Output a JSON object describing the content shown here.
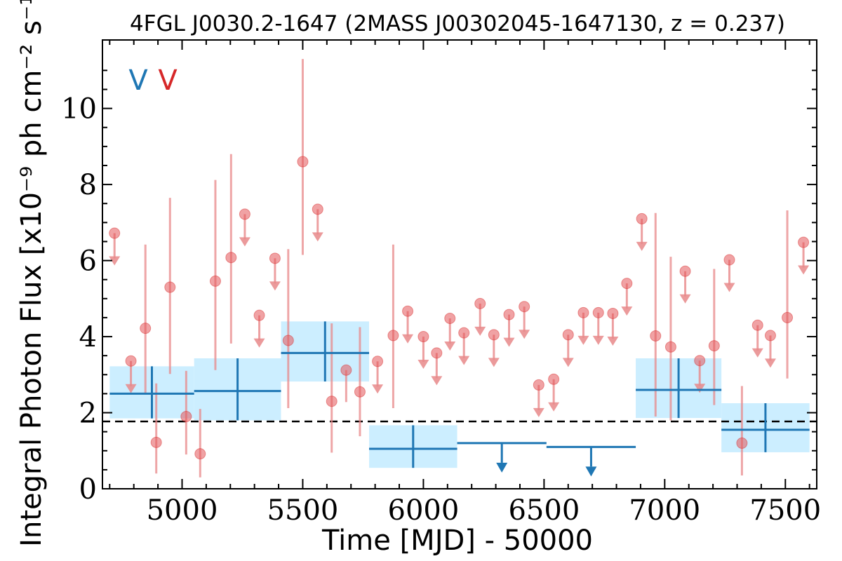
{
  "chart_data": {
    "type": "scatter",
    "title": "4FGL J0030.2-1647 (2MASS J00302045-1647130, z = 0.237)",
    "xlabel": "Time [MJD] - 50000",
    "ylabel": "Integral Photon Flux [x10⁻⁹ ph cm⁻² s⁻¹]",
    "xlim": [
      4670,
      7630
    ],
    "ylim": [
      0,
      11.8
    ],
    "x_ticks": [
      5000,
      5500,
      6000,
      6500,
      7000,
      7500
    ],
    "x_tick_labels": [
      "5000",
      "5500",
      "6000",
      "6500",
      "7000",
      "7500"
    ],
    "y_ticks": [
      0,
      2,
      4,
      6,
      8,
      10
    ],
    "y_tick_labels": [
      "0",
      "2",
      "4",
      "6",
      "8",
      "10"
    ],
    "grid": false,
    "legend": {
      "placement": "top-left",
      "entries": [
        {
          "text": "V",
          "color": "#1f77b4"
        },
        {
          "text": "V",
          "color": "#d62728"
        }
      ]
    },
    "reference_line": {
      "y": 1.77,
      "style": "dashed",
      "color": "#000000"
    },
    "series": [
      {
        "kind": "long-bins",
        "color": "#1f77b4",
        "band_color": "#cceeff",
        "detections": [
          {
            "x0": 4700,
            "x1": 5050,
            "y": 2.5,
            "ylo": 1.85,
            "yhi": 3.22
          },
          {
            "x0": 5050,
            "x1": 5410,
            "y": 2.57,
            "ylo": 1.8,
            "yhi": 3.43
          },
          {
            "x0": 5410,
            "x1": 5775,
            "y": 3.57,
            "ylo": 2.82,
            "yhi": 4.4
          },
          {
            "x0": 5775,
            "x1": 6140,
            "y": 1.05,
            "ylo": 0.55,
            "yhi": 1.67
          },
          {
            "x0": 6880,
            "x1": 7235,
            "y": 2.6,
            "ylo": 1.86,
            "yhi": 3.43
          },
          {
            "x0": 7235,
            "x1": 7600,
            "y": 1.55,
            "ylo": 0.96,
            "yhi": 2.25
          }
        ],
        "upper_limits": [
          {
            "x0": 6140,
            "x1": 6510,
            "y": 1.2
          },
          {
            "x0": 6510,
            "x1": 6880,
            "y": 1.1
          }
        ]
      },
      {
        "kind": "short-bins",
        "color": "#e8888a",
        "detections": [
          {
            "x": 4848,
            "y": 4.22,
            "ylo": 2.52,
            "yhi": 6.42
          },
          {
            "x": 4893,
            "y": 1.22,
            "ylo": 0.4,
            "yhi": 2.77
          },
          {
            "x": 4950,
            "y": 5.3,
            "ylo": 3.02,
            "yhi": 7.65
          },
          {
            "x": 5017,
            "y": 1.9,
            "ylo": 0.9,
            "yhi": 3.1
          },
          {
            "x": 5075,
            "y": 0.92,
            "ylo": 0.3,
            "yhi": 2.1
          },
          {
            "x": 5138,
            "y": 5.46,
            "ylo": 3.12,
            "yhi": 8.12
          },
          {
            "x": 5203,
            "y": 6.08,
            "ylo": 3.82,
            "yhi": 8.8
          },
          {
            "x": 5440,
            "y": 3.9,
            "ylo": 2.12,
            "yhi": 6.3
          },
          {
            "x": 5500,
            "y": 8.6,
            "ylo": 6.15,
            "yhi": 11.3
          },
          {
            "x": 5620,
            "y": 2.3,
            "ylo": 0.95,
            "yhi": 4.35
          },
          {
            "x": 5680,
            "y": 3.12,
            "ylo": 2.28,
            "yhi": 3.12
          },
          {
            "x": 5737,
            "y": 2.55,
            "ylo": 1.38,
            "yhi": 4.25
          },
          {
            "x": 5875,
            "y": 4.03,
            "ylo": 2.12,
            "yhi": 6.42
          },
          {
            "x": 6962,
            "y": 4.02,
            "ylo": 1.9,
            "yhi": 7.25
          },
          {
            "x": 7025,
            "y": 3.73,
            "ylo": 1.8,
            "yhi": 6.1
          },
          {
            "x": 7205,
            "y": 3.76,
            "ylo": 2.2,
            "yhi": 5.78
          },
          {
            "x": 7320,
            "y": 1.2,
            "ylo": 0.35,
            "yhi": 2.7
          },
          {
            "x": 7508,
            "y": 4.5,
            "ylo": 2.9,
            "yhi": 7.32
          }
        ],
        "upper_limits": [
          {
            "x": 4720,
            "y": 6.72
          },
          {
            "x": 4788,
            "y": 3.36
          },
          {
            "x": 5260,
            "y": 7.22
          },
          {
            "x": 5320,
            "y": 4.56
          },
          {
            "x": 5385,
            "y": 6.06
          },
          {
            "x": 5562,
            "y": 7.35
          },
          {
            "x": 5810,
            "y": 3.35
          },
          {
            "x": 5935,
            "y": 4.67
          },
          {
            "x": 6000,
            "y": 4.0
          },
          {
            "x": 6055,
            "y": 3.57
          },
          {
            "x": 6110,
            "y": 4.48
          },
          {
            "x": 6168,
            "y": 4.1
          },
          {
            "x": 6235,
            "y": 4.87
          },
          {
            "x": 6292,
            "y": 4.05
          },
          {
            "x": 6355,
            "y": 4.58
          },
          {
            "x": 6418,
            "y": 4.79
          },
          {
            "x": 6478,
            "y": 2.73
          },
          {
            "x": 6540,
            "y": 2.88
          },
          {
            "x": 6600,
            "y": 4.05
          },
          {
            "x": 6663,
            "y": 4.63
          },
          {
            "x": 6725,
            "y": 4.63
          },
          {
            "x": 6785,
            "y": 4.61
          },
          {
            "x": 6843,
            "y": 5.4
          },
          {
            "x": 6905,
            "y": 7.1
          },
          {
            "x": 7085,
            "y": 5.72
          },
          {
            "x": 7145,
            "y": 3.37
          },
          {
            "x": 7268,
            "y": 6.02
          },
          {
            "x": 7385,
            "y": 4.3
          },
          {
            "x": 7438,
            "y": 4.03
          },
          {
            "x": 7575,
            "y": 6.48
          }
        ]
      }
    ]
  }
}
